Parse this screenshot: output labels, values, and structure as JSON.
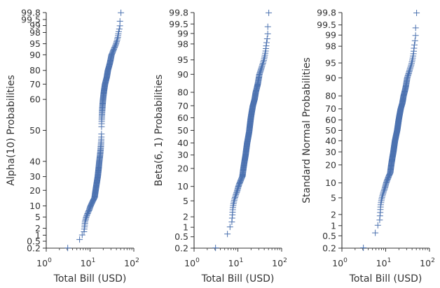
{
  "chart_data": [
    {
      "type": "scatter",
      "panel_id": "alpha",
      "ylabel": "Alpha(10) Probabilities",
      "xlabel": "Total Bill (USD)",
      "x_scale": "log",
      "xlim": [
        1,
        100
      ],
      "x_ticks": [
        {
          "base": "10",
          "exp": "0"
        },
        {
          "base": "10",
          "exp": "1"
        },
        {
          "base": "10",
          "exp": "2"
        }
      ],
      "y_scale": "probability",
      "ylim": [
        0.2,
        99.8
      ],
      "y_tick_values": [
        0.2,
        0.5,
        1,
        2,
        5,
        10,
        20,
        30,
        40,
        50,
        60,
        70,
        80,
        90,
        95,
        98,
        99,
        99.5,
        99.8
      ],
      "y_tick_labels": [
        "0.2",
        "0.5",
        "1",
        "2",
        "5",
        "10",
        "20",
        "30",
        "40",
        "50",
        "60",
        "70",
        "80",
        "90",
        "95",
        "98",
        "99",
        "99.5",
        "99.8"
      ],
      "points": [
        [
          3.07,
          0.2
        ],
        [
          5.75,
          0.6
        ],
        [
          7.25,
          1.3
        ],
        [
          7.5,
          2.2
        ],
        [
          7.7,
          3.5
        ],
        [
          8.2,
          5
        ],
        [
          9.6,
          8
        ],
        [
          10.3,
          10
        ],
        [
          12.7,
          15
        ],
        [
          13.4,
          20
        ],
        [
          15.0,
          30
        ],
        [
          16.3,
          40
        ],
        [
          18.3,
          50
        ],
        [
          19.8,
          60
        ],
        [
          20.8,
          65
        ],
        [
          22.0,
          70
        ],
        [
          24.1,
          75
        ],
        [
          25.6,
          80
        ],
        [
          28.4,
          85
        ],
        [
          31.0,
          90
        ],
        [
          35.3,
          93
        ],
        [
          39.3,
          95
        ],
        [
          43.2,
          97
        ],
        [
          44.7,
          98
        ],
        [
          48.2,
          99
        ],
        [
          48.3,
          99.5
        ],
        [
          50.8,
          99.8
        ]
      ],
      "marker": "+",
      "color": "#4c72b0"
    },
    {
      "type": "scatter",
      "panel_id": "beta",
      "ylabel": "Beta(6, 1) Probabilities",
      "xlabel": "Total Bill (USD)",
      "x_scale": "log",
      "xlim": [
        1,
        100
      ],
      "x_ticks": [
        {
          "base": "10",
          "exp": "0"
        },
        {
          "base": "10",
          "exp": "1"
        },
        {
          "base": "10",
          "exp": "2"
        }
      ],
      "y_scale": "probability",
      "ylim": [
        0.2,
        99.8
      ],
      "y_tick_values": [
        0.2,
        0.5,
        1,
        2,
        5,
        10,
        20,
        30,
        40,
        50,
        60,
        70,
        80,
        90,
        95,
        98,
        99,
        99.5,
        99.8
      ],
      "y_tick_labels": [
        "0.2",
        "0.5",
        "1",
        "2",
        "5",
        "10",
        "20",
        "30",
        "40",
        "50",
        "60",
        "70",
        "80",
        "90",
        "95",
        "98",
        "99",
        "99.5",
        "99.8"
      ],
      "points": [
        [
          3.07,
          0.2
        ],
        [
          5.75,
          0.6
        ],
        [
          7.25,
          1.3
        ],
        [
          7.5,
          2.2
        ],
        [
          7.7,
          3.5
        ],
        [
          8.2,
          5
        ],
        [
          9.6,
          8
        ],
        [
          10.3,
          10
        ],
        [
          12.7,
          15
        ],
        [
          13.4,
          20
        ],
        [
          15.0,
          30
        ],
        [
          16.3,
          40
        ],
        [
          18.3,
          50
        ],
        [
          19.8,
          60
        ],
        [
          20.8,
          65
        ],
        [
          22.0,
          70
        ],
        [
          24.1,
          75
        ],
        [
          25.6,
          80
        ],
        [
          28.4,
          85
        ],
        [
          31.0,
          90
        ],
        [
          35.3,
          93
        ],
        [
          39.3,
          95
        ],
        [
          43.2,
          97
        ],
        [
          44.7,
          98
        ],
        [
          48.2,
          99
        ],
        [
          48.3,
          99.5
        ],
        [
          50.8,
          99.8
        ]
      ],
      "marker": "+",
      "color": "#4c72b0"
    },
    {
      "type": "scatter",
      "panel_id": "normal",
      "ylabel": "Standard Normal Probabilities",
      "xlabel": "Total Bill (USD)",
      "x_scale": "log",
      "xlim": [
        1,
        100
      ],
      "x_ticks": [
        {
          "base": "10",
          "exp": "0"
        },
        {
          "base": "10",
          "exp": "1"
        },
        {
          "base": "10",
          "exp": "2"
        }
      ],
      "y_scale": "probability",
      "ylim": [
        0.2,
        99.8
      ],
      "y_tick_values": [
        0.2,
        0.5,
        1,
        2,
        5,
        10,
        20,
        30,
        40,
        50,
        60,
        70,
        80,
        90,
        95,
        98,
        99,
        99.5,
        99.8
      ],
      "y_tick_labels": [
        "0.2",
        "0.5",
        "1",
        "2",
        "5",
        "10",
        "20",
        "30",
        "40",
        "50",
        "60",
        "70",
        "80",
        "90",
        "95",
        "98",
        "99",
        "99.5",
        "99.8"
      ],
      "points": [
        [
          3.07,
          0.2
        ],
        [
          5.75,
          0.6
        ],
        [
          7.25,
          1.3
        ],
        [
          7.5,
          2.2
        ],
        [
          7.7,
          3.5
        ],
        [
          8.2,
          5
        ],
        [
          9.6,
          8
        ],
        [
          10.3,
          10
        ],
        [
          12.7,
          15
        ],
        [
          13.4,
          20
        ],
        [
          15.0,
          30
        ],
        [
          16.3,
          40
        ],
        [
          18.3,
          50
        ],
        [
          19.8,
          60
        ],
        [
          20.8,
          65
        ],
        [
          22.0,
          70
        ],
        [
          24.1,
          75
        ],
        [
          25.6,
          80
        ],
        [
          28.4,
          85
        ],
        [
          31.0,
          90
        ],
        [
          35.3,
          93
        ],
        [
          39.3,
          95
        ],
        [
          43.2,
          97
        ],
        [
          44.7,
          98
        ],
        [
          48.2,
          99
        ],
        [
          48.3,
          99.5
        ],
        [
          50.8,
          99.8
        ]
      ],
      "marker": "+",
      "color": "#4c72b0"
    }
  ]
}
